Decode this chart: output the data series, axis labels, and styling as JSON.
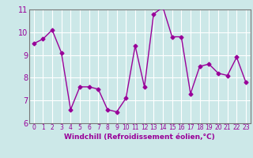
{
  "x": [
    0,
    1,
    2,
    3,
    4,
    5,
    6,
    7,
    8,
    9,
    10,
    11,
    12,
    13,
    14,
    15,
    16,
    17,
    18,
    19,
    20,
    21,
    22,
    23
  ],
  "y": [
    9.5,
    9.7,
    10.1,
    9.1,
    6.6,
    7.6,
    7.6,
    7.5,
    6.6,
    6.5,
    7.1,
    9.4,
    7.6,
    10.8,
    11.1,
    9.8,
    9.8,
    7.3,
    8.5,
    8.6,
    8.2,
    8.1,
    8.9,
    7.8
  ],
  "line_color": "#990099",
  "marker": "D",
  "marker_size": 2.5,
  "linewidth": 1.0,
  "bg_color": "#cce8e8",
  "grid_color": "#ffffff",
  "xlabel": "Windchill (Refroidissement éolien,°C)",
  "xlabel_color": "#990099",
  "tick_color": "#990099",
  "axis_color": "#777777",
  "ylim": [
    6,
    11
  ],
  "xlim": [
    -0.5,
    23.5
  ],
  "yticks": [
    6,
    7,
    8,
    9,
    10,
    11
  ],
  "xticks": [
    0,
    1,
    2,
    3,
    4,
    5,
    6,
    7,
    8,
    9,
    10,
    11,
    12,
    13,
    14,
    15,
    16,
    17,
    18,
    19,
    20,
    21,
    22,
    23
  ],
  "xtick_fontsize": 5.5,
  "ytick_fontsize": 7.0,
  "xlabel_fontsize": 6.5
}
